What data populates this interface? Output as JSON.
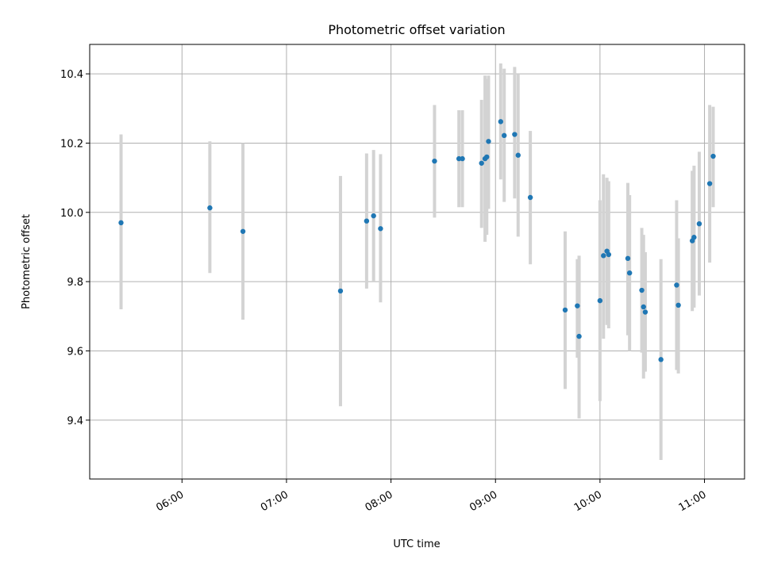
{
  "chart_data": {
    "type": "scatter",
    "title": "Photometric offset variation",
    "xlabel": "UTC time",
    "ylabel": "Photometric offset",
    "x_unit": "UTC time of day (HH:MM)",
    "xlim": [
      "05:07",
      "11:23"
    ],
    "ylim": [
      9.23,
      10.485
    ],
    "x_ticks": [
      "06:00",
      "07:00",
      "08:00",
      "09:00",
      "10:00",
      "11:00"
    ],
    "y_ticks": [
      9.4,
      9.6,
      9.8,
      10.0,
      10.2,
      10.4
    ],
    "y_tick_labels": [
      "9.4",
      "9.6",
      "9.8",
      "10.0",
      "10.2",
      "10.4"
    ],
    "grid": true,
    "point_color": "#1f77b4",
    "errorbar_color": "#d3d3d3",
    "points": [
      {
        "t": "05:25",
        "y": 9.97,
        "lo": 9.72,
        "hi": 10.225
      },
      {
        "t": "06:16",
        "y": 10.013,
        "lo": 9.825,
        "hi": 10.205
      },
      {
        "t": "06:35",
        "y": 9.945,
        "lo": 9.69,
        "hi": 10.2
      },
      {
        "t": "07:31",
        "y": 9.773,
        "lo": 9.44,
        "hi": 10.105
      },
      {
        "t": "07:46",
        "y": 9.975,
        "lo": 9.78,
        "hi": 10.17
      },
      {
        "t": "07:50",
        "y": 9.99,
        "lo": 9.8,
        "hi": 10.18
      },
      {
        "t": "07:54",
        "y": 9.953,
        "lo": 9.74,
        "hi": 10.168
      },
      {
        "t": "08:25",
        "y": 10.148,
        "lo": 9.985,
        "hi": 10.31
      },
      {
        "t": "08:39",
        "y": 10.155,
        "lo": 10.015,
        "hi": 10.295
      },
      {
        "t": "08:41",
        "y": 10.155,
        "lo": 10.015,
        "hi": 10.295
      },
      {
        "t": "08:52",
        "y": 10.142,
        "lo": 9.955,
        "hi": 10.325
      },
      {
        "t": "08:54",
        "y": 10.155,
        "lo": 9.915,
        "hi": 10.395
      },
      {
        "t": "08:55",
        "y": 10.16,
        "lo": 9.935,
        "hi": 10.385
      },
      {
        "t": "08:56",
        "y": 10.205,
        "lo": 10.01,
        "hi": 10.395
      },
      {
        "t": "09:03",
        "y": 10.262,
        "lo": 10.095,
        "hi": 10.43
      },
      {
        "t": "09:05",
        "y": 10.222,
        "lo": 10.03,
        "hi": 10.415
      },
      {
        "t": "09:11",
        "y": 10.225,
        "lo": 10.04,
        "hi": 10.42
      },
      {
        "t": "09:13",
        "y": 10.165,
        "lo": 9.93,
        "hi": 10.4
      },
      {
        "t": "09:20",
        "y": 10.043,
        "lo": 9.85,
        "hi": 10.235
      },
      {
        "t": "09:40",
        "y": 9.718,
        "lo": 9.49,
        "hi": 9.945
      },
      {
        "t": "09:47",
        "y": 9.73,
        "lo": 9.58,
        "hi": 9.865
      },
      {
        "t": "09:48",
        "y": 9.642,
        "lo": 9.405,
        "hi": 9.875
      },
      {
        "t": "10:00",
        "y": 9.745,
        "lo": 9.455,
        "hi": 10.035
      },
      {
        "t": "10:02",
        "y": 9.875,
        "lo": 9.635,
        "hi": 10.11
      },
      {
        "t": "10:04",
        "y": 9.888,
        "lo": 9.675,
        "hi": 10.1
      },
      {
        "t": "10:05",
        "y": 9.878,
        "lo": 9.665,
        "hi": 10.09
      },
      {
        "t": "10:16",
        "y": 9.867,
        "lo": 9.645,
        "hi": 10.085
      },
      {
        "t": "10:17",
        "y": 9.825,
        "lo": 9.6,
        "hi": 10.05
      },
      {
        "t": "10:24",
        "y": 9.775,
        "lo": 9.595,
        "hi": 9.955
      },
      {
        "t": "10:25",
        "y": 9.727,
        "lo": 9.52,
        "hi": 9.935
      },
      {
        "t": "10:26",
        "y": 9.712,
        "lo": 9.54,
        "hi": 9.885
      },
      {
        "t": "10:35",
        "y": 9.575,
        "lo": 9.285,
        "hi": 9.865
      },
      {
        "t": "10:44",
        "y": 9.79,
        "lo": 9.545,
        "hi": 10.035
      },
      {
        "t": "10:45",
        "y": 9.732,
        "lo": 9.535,
        "hi": 9.925
      },
      {
        "t": "10:53",
        "y": 9.918,
        "lo": 9.715,
        "hi": 10.12
      },
      {
        "t": "10:54",
        "y": 9.928,
        "lo": 9.725,
        "hi": 10.135
      },
      {
        "t": "10:57",
        "y": 9.967,
        "lo": 9.76,
        "hi": 10.175
      },
      {
        "t": "11:03",
        "y": 10.083,
        "lo": 9.855,
        "hi": 10.31
      },
      {
        "t": "11:05",
        "y": 10.162,
        "lo": 10.015,
        "hi": 10.305
      }
    ]
  }
}
